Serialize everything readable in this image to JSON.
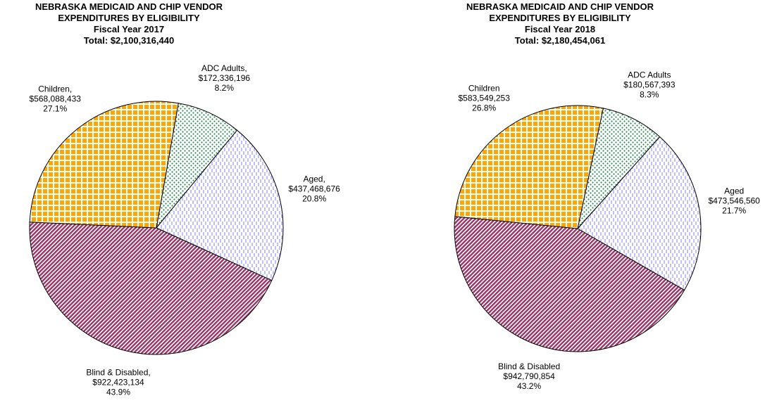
{
  "chart_data": [
    {
      "type": "pie",
      "title": [
        "NEBRASKA MEDICAID AND CHIP VENDOR",
        "EXPENDITURES BY ELIGIBILITY"
      ],
      "subtitle": "Fiscal Year 2017",
      "total": 2100316440,
      "total_label": "Total: $2,100,316,440",
      "categories": [
        "ADC Adults,",
        "Aged,",
        "Blind & Disabled,",
        "Children,"
      ],
      "values": [
        172336196,
        437468676,
        922423134,
        568088433
      ],
      "value_labels": [
        "$172,336,196",
        "$437,468,676",
        "$922,423,134",
        "$568,088,433"
      ],
      "percents": [
        8.2,
        20.8,
        43.9,
        27.1
      ],
      "percent_labels": [
        "8.2%",
        "20.8%",
        "43.9%",
        "27.1%"
      ],
      "colors": [
        "#2e8b57",
        "#8080ff",
        "#993366",
        "#ffa500"
      ]
    },
    {
      "type": "pie",
      "title": [
        "NEBRASKA MEDICAID AND CHIP VENDOR",
        "EXPENDITURES BY ELIGIBILITY"
      ],
      "subtitle": "Fiscal Year 2018",
      "total": 2180454061,
      "total_label": "Total: $2,180,454,061",
      "categories": [
        "ADC Adults",
        "Aged",
        "Blind & Disabled",
        "Children"
      ],
      "values": [
        180567393,
        473546560,
        942790854,
        583549253
      ],
      "value_labels": [
        "$180,567,393",
        "$473,546,560",
        "$942,790,854",
        "$583,549,253"
      ],
      "percents": [
        8.3,
        21.7,
        43.2,
        26.8
      ],
      "percent_labels": [
        "8.3%",
        "21.7%",
        "43.2%",
        "26.8%"
      ],
      "colors": [
        "#2e8b57",
        "#8080ff",
        "#993366",
        "#ffa500"
      ]
    }
  ]
}
